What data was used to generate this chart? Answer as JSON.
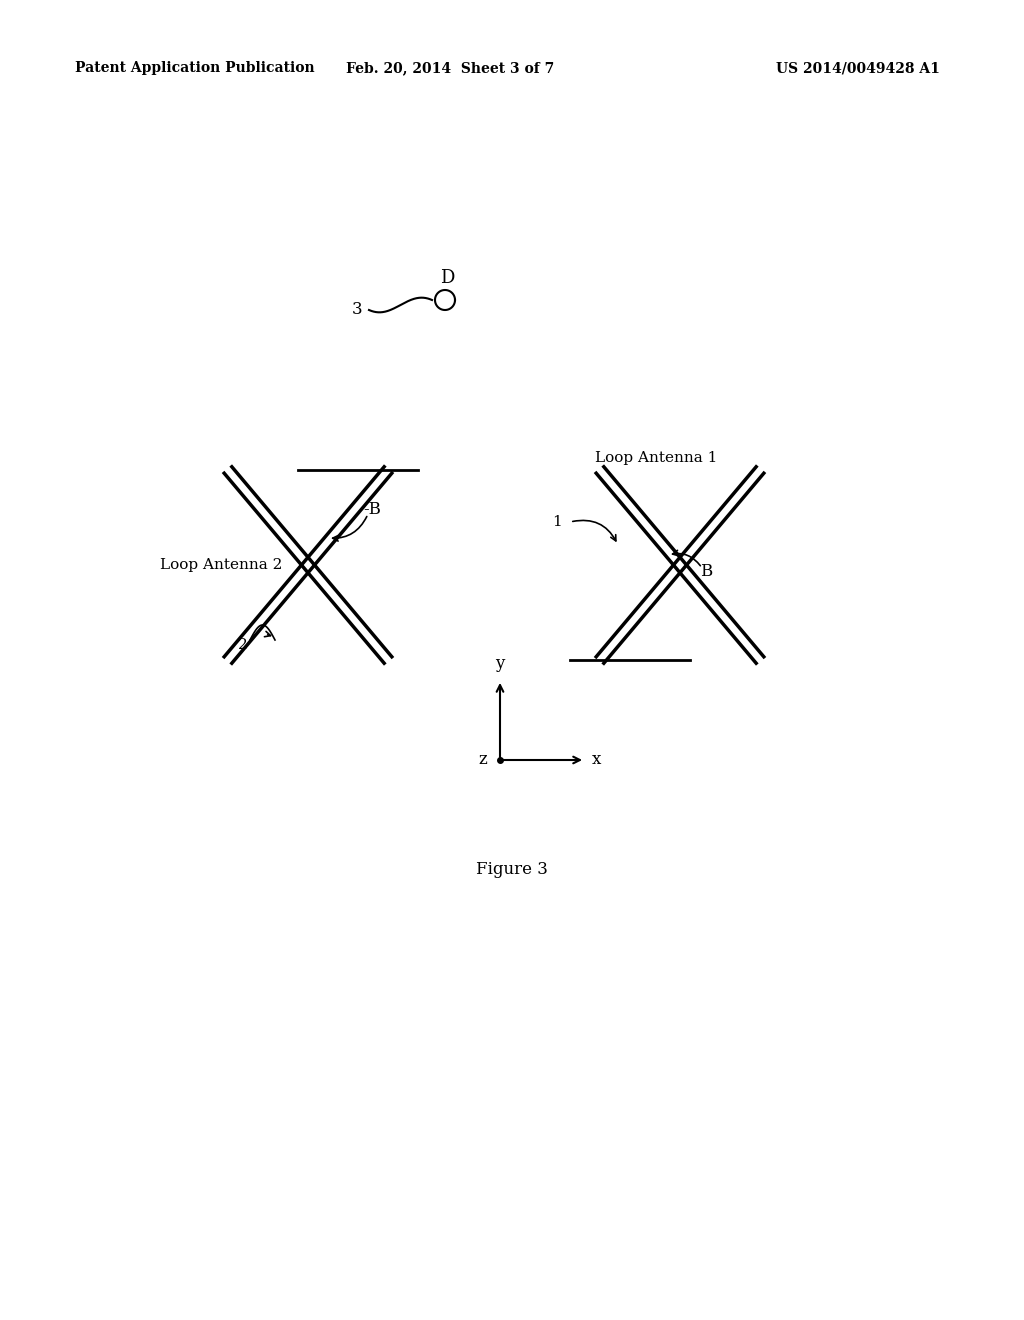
{
  "bg_color": "#ffffff",
  "header_left": "Patent Application Publication",
  "header_center": "Feb. 20, 2014  Sheet 3 of 7",
  "header_right": "US 2014/0049428 A1",
  "figure_label": "Figure 3"
}
